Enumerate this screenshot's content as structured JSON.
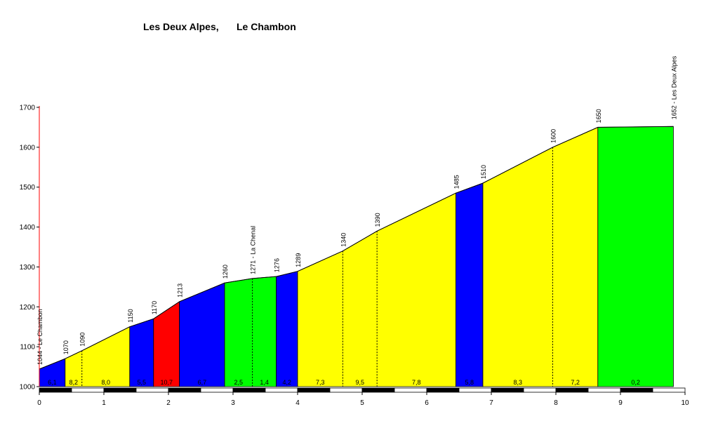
{
  "chart_data": {
    "type": "area",
    "title_left": "Les Deux Alpes,",
    "title_right": "Le Chambon",
    "xlim": [
      0,
      10
    ],
    "ylim": [
      1000,
      1700
    ],
    "x_ticks": [
      "0",
      "1",
      "2",
      "3",
      "4",
      "5",
      "6",
      "7",
      "8",
      "9",
      "10"
    ],
    "y_ticks": [
      "1000",
      "1100",
      "1200",
      "1300",
      "1400",
      "1500",
      "1600",
      "1700"
    ],
    "profile": [
      {
        "x": 0.0,
        "y": 1044
      },
      {
        "x": 0.4,
        "y": 1070
      },
      {
        "x": 0.66,
        "y": 1090
      },
      {
        "x": 1.4,
        "y": 1150
      },
      {
        "x": 1.77,
        "y": 1170
      },
      {
        "x": 2.17,
        "y": 1213
      },
      {
        "x": 2.87,
        "y": 1260
      },
      {
        "x": 3.3,
        "y": 1271
      },
      {
        "x": 3.67,
        "y": 1276
      },
      {
        "x": 4.0,
        "y": 1289
      },
      {
        "x": 4.7,
        "y": 1340
      },
      {
        "x": 5.23,
        "y": 1390
      },
      {
        "x": 6.45,
        "y": 1485
      },
      {
        "x": 6.87,
        "y": 1510
      },
      {
        "x": 7.95,
        "y": 1600
      },
      {
        "x": 8.65,
        "y": 1650
      },
      {
        "x": 9.82,
        "y": 1652
      }
    ],
    "segments": [
      {
        "from": 0.0,
        "to": 0.4,
        "color": "#0000ff"
      },
      {
        "from": 0.4,
        "to": 1.4,
        "color": "#ffff00"
      },
      {
        "from": 1.4,
        "to": 1.77,
        "color": "#0000ff"
      },
      {
        "from": 1.77,
        "to": 2.17,
        "color": "#ff0000"
      },
      {
        "from": 2.17,
        "to": 2.87,
        "color": "#0000ff"
      },
      {
        "from": 2.87,
        "to": 3.67,
        "color": "#00ff00"
      },
      {
        "from": 3.67,
        "to": 4.0,
        "color": "#0000ff"
      },
      {
        "from": 4.0,
        "to": 6.45,
        "color": "#ffff00"
      },
      {
        "from": 6.45,
        "to": 6.87,
        "color": "#0000ff"
      },
      {
        "from": 6.87,
        "to": 8.65,
        "color": "#ffff00"
      },
      {
        "from": 8.65,
        "to": 9.82,
        "color": "#00ff00"
      }
    ],
    "dashed_lines": [
      0.66,
      3.3,
      4.7,
      5.23,
      7.95
    ],
    "elevation_labels": [
      {
        "x": 0.0,
        "text": "1044 - Le Chambon"
      },
      {
        "x": 0.4,
        "text": "1070"
      },
      {
        "x": 0.66,
        "text": "1090"
      },
      {
        "x": 1.4,
        "text": "1150"
      },
      {
        "x": 1.77,
        "text": "1170"
      },
      {
        "x": 2.17,
        "text": "1213"
      },
      {
        "x": 2.87,
        "text": "1260"
      },
      {
        "x": 3.3,
        "text": "1271 - La Chenal"
      },
      {
        "x": 3.67,
        "text": "1276"
      },
      {
        "x": 4.0,
        "text": "1289"
      },
      {
        "x": 4.7,
        "text": "1340"
      },
      {
        "x": 5.23,
        "text": "1390"
      },
      {
        "x": 6.45,
        "text": "1485"
      },
      {
        "x": 6.87,
        "text": "1510"
      },
      {
        "x": 7.95,
        "text": "1600"
      },
      {
        "x": 8.65,
        "text": "1650"
      },
      {
        "x": 9.82,
        "text": "1652 - Les Deux Alpes"
      }
    ],
    "gradient_labels": [
      {
        "from": 0.0,
        "to": 0.4,
        "text": "6,1"
      },
      {
        "from": 0.4,
        "to": 0.66,
        "text": "8,2"
      },
      {
        "from": 0.66,
        "to": 1.4,
        "text": "8,0"
      },
      {
        "from": 1.4,
        "to": 1.77,
        "text": "5,5"
      },
      {
        "from": 1.77,
        "to": 2.17,
        "text": "10,7"
      },
      {
        "from": 2.17,
        "to": 2.87,
        "text": "6,7"
      },
      {
        "from": 2.87,
        "to": 3.3,
        "text": "2,5"
      },
      {
        "from": 3.3,
        "to": 3.67,
        "text": "1,4"
      },
      {
        "from": 3.67,
        "to": 4.0,
        "text": "4,2"
      },
      {
        "from": 4.0,
        "to": 4.7,
        "text": "7,3"
      },
      {
        "from": 4.7,
        "to": 5.23,
        "text": "9,5"
      },
      {
        "from": 5.23,
        "to": 6.45,
        "text": "7,8"
      },
      {
        "from": 6.45,
        "to": 6.87,
        "text": "5,8"
      },
      {
        "from": 6.87,
        "to": 7.95,
        "text": "8,3"
      },
      {
        "from": 7.95,
        "to": 8.65,
        "text": "7,2"
      },
      {
        "from": 8.65,
        "to": 9.82,
        "text": "0,2"
      }
    ],
    "grid": false,
    "legend": "none"
  }
}
